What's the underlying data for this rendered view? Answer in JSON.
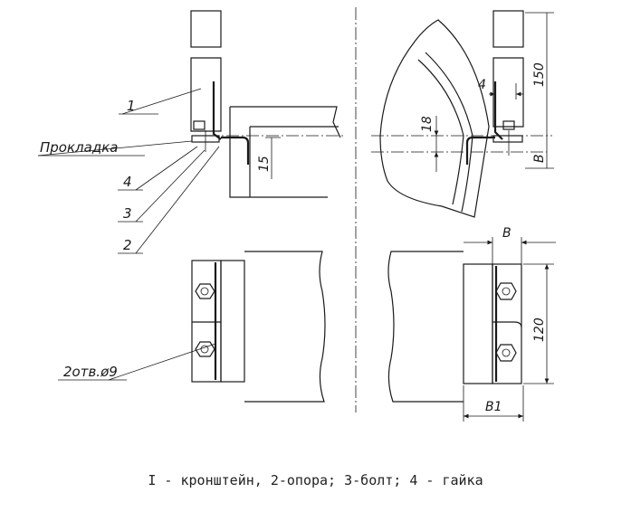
{
  "labels": {
    "part1": "1",
    "gasket": "Прокладка",
    "part4": "4",
    "part3": "3",
    "part2": "2",
    "holes": "2отв.ø9"
  },
  "dimensions": {
    "d15": "15",
    "d18": "18",
    "d4": "4",
    "d150": "150",
    "dB_side": "B",
    "dB_top": "B",
    "d120": "120",
    "dB1": "B1"
  },
  "caption": "I - кронштейн, 2-опора; 3-болт; 4 - гайка"
}
